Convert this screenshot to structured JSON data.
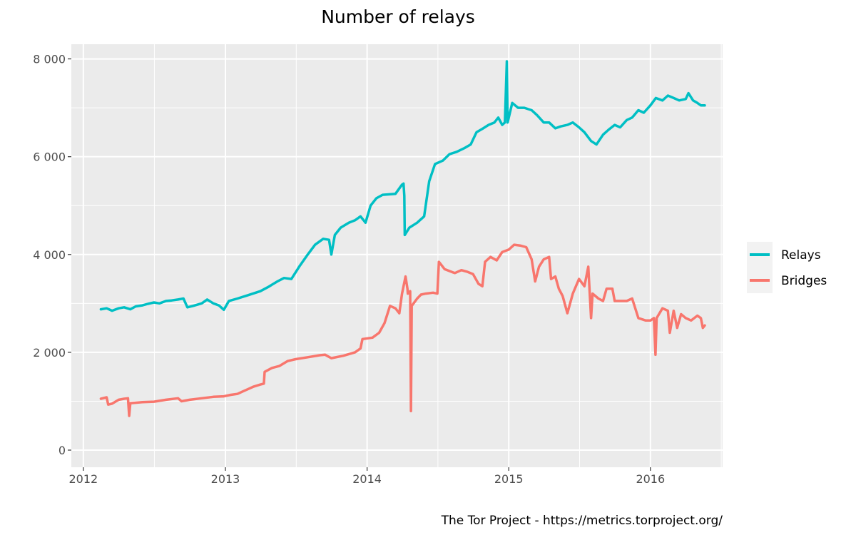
{
  "chart_data": {
    "type": "line",
    "title": "Number of relays",
    "xlabel": "",
    "ylabel": "",
    "caption": "The Tor Project - https://metrics.torproject.org/",
    "xlim": [
      "2011-12-01",
      "2016-07-05"
    ],
    "ylim": [
      -350,
      8300
    ],
    "x_ticks": [
      "2012-01-01",
      "2013-01-01",
      "2014-01-01",
      "2015-01-01",
      "2016-01-01"
    ],
    "x_tick_labels": [
      "2012",
      "2013",
      "2014",
      "2015",
      "2016"
    ],
    "y_ticks": [
      0,
      2000,
      4000,
      6000,
      8000
    ],
    "y_tick_labels": [
      "0",
      "2 000",
      "4 000",
      "6 000",
      "8 000"
    ],
    "grid": true,
    "legend_position": "right",
    "series": [
      {
        "name": "Relays",
        "color": "#00BFC4",
        "points": [
          [
            "2012-02-15",
            2880
          ],
          [
            "2012-03-01",
            2900
          ],
          [
            "2012-03-15",
            2850
          ],
          [
            "2012-04-01",
            2900
          ],
          [
            "2012-04-15",
            2920
          ],
          [
            "2012-05-01",
            2880
          ],
          [
            "2012-05-15",
            2940
          ],
          [
            "2012-06-01",
            2960
          ],
          [
            "2012-06-15",
            2990
          ],
          [
            "2012-07-01",
            3020
          ],
          [
            "2012-07-15",
            3000
          ],
          [
            "2012-08-01",
            3050
          ],
          [
            "2012-08-15",
            3060
          ],
          [
            "2012-09-01",
            3080
          ],
          [
            "2012-09-15",
            3100
          ],
          [
            "2012-09-25",
            2920
          ],
          [
            "2012-10-10",
            2950
          ],
          [
            "2012-11-01",
            3000
          ],
          [
            "2012-11-15",
            3080
          ],
          [
            "2012-12-01",
            3000
          ],
          [
            "2012-12-15",
            2960
          ],
          [
            "2012-12-28",
            2870
          ],
          [
            "2013-01-10",
            3050
          ],
          [
            "2013-02-01",
            3100
          ],
          [
            "2013-03-01",
            3170
          ],
          [
            "2013-04-01",
            3250
          ],
          [
            "2013-04-20",
            3330
          ],
          [
            "2013-05-15",
            3450
          ],
          [
            "2013-06-01",
            3520
          ],
          [
            "2013-06-20",
            3500
          ],
          [
            "2013-07-10",
            3750
          ],
          [
            "2013-08-01",
            4000
          ],
          [
            "2013-08-20",
            4200
          ],
          [
            "2013-09-10",
            4320
          ],
          [
            "2013-09-25",
            4300
          ],
          [
            "2013-10-01",
            4000
          ],
          [
            "2013-10-10",
            4400
          ],
          [
            "2013-10-25",
            4550
          ],
          [
            "2013-11-15",
            4650
          ],
          [
            "2013-12-01",
            4700
          ],
          [
            "2013-12-15",
            4780
          ],
          [
            "2013-12-28",
            4650
          ],
          [
            "2014-01-10",
            5000
          ],
          [
            "2014-01-25",
            5150
          ],
          [
            "2014-02-10",
            5220
          ],
          [
            "2014-02-25",
            5230
          ],
          [
            "2014-03-15",
            5240
          ],
          [
            "2014-04-01",
            5430
          ],
          [
            "2014-04-05",
            5450
          ],
          [
            "2014-04-07",
            5200
          ],
          [
            "2014-04-08",
            4400
          ],
          [
            "2014-04-20",
            4550
          ],
          [
            "2014-05-10",
            4650
          ],
          [
            "2014-05-28",
            4780
          ],
          [
            "2014-06-10",
            5500
          ],
          [
            "2014-06-25",
            5850
          ],
          [
            "2014-07-15",
            5920
          ],
          [
            "2014-08-01",
            6050
          ],
          [
            "2014-08-20",
            6100
          ],
          [
            "2014-09-10",
            6180
          ],
          [
            "2014-09-25",
            6250
          ],
          [
            "2014-10-10",
            6500
          ],
          [
            "2014-10-25",
            6570
          ],
          [
            "2014-11-10",
            6650
          ],
          [
            "2014-11-25",
            6700
          ],
          [
            "2014-12-05",
            6800
          ],
          [
            "2014-12-15",
            6650
          ],
          [
            "2014-12-22",
            6700
          ],
          [
            "2014-12-27",
            7950
          ],
          [
            "2014-12-29",
            6700
          ],
          [
            "2015-01-10",
            7100
          ],
          [
            "2015-01-25",
            7000
          ],
          [
            "2015-02-10",
            7000
          ],
          [
            "2015-03-01",
            6950
          ],
          [
            "2015-03-15",
            6850
          ],
          [
            "2015-04-01",
            6700
          ],
          [
            "2015-04-15",
            6700
          ],
          [
            "2015-05-01",
            6580
          ],
          [
            "2015-05-15",
            6620
          ],
          [
            "2015-06-01",
            6650
          ],
          [
            "2015-06-15",
            6700
          ],
          [
            "2015-07-01",
            6600
          ],
          [
            "2015-07-15",
            6500
          ],
          [
            "2015-08-01",
            6320
          ],
          [
            "2015-08-15",
            6250
          ],
          [
            "2015-09-01",
            6450
          ],
          [
            "2015-09-15",
            6550
          ],
          [
            "2015-10-01",
            6650
          ],
          [
            "2015-10-15",
            6600
          ],
          [
            "2015-11-01",
            6750
          ],
          [
            "2015-11-15",
            6800
          ],
          [
            "2015-12-01",
            6950
          ],
          [
            "2015-12-15",
            6900
          ],
          [
            "2016-01-01",
            7050
          ],
          [
            "2016-01-15",
            7200
          ],
          [
            "2016-02-01",
            7150
          ],
          [
            "2016-02-15",
            7250
          ],
          [
            "2016-03-01",
            7200
          ],
          [
            "2016-03-15",
            7150
          ],
          [
            "2016-04-01",
            7180
          ],
          [
            "2016-04-08",
            7300
          ],
          [
            "2016-04-20",
            7150
          ],
          [
            "2016-05-01",
            7100
          ],
          [
            "2016-05-10",
            7050
          ],
          [
            "2016-05-20",
            7050
          ]
        ]
      },
      {
        "name": "Bridges",
        "color": "#F8766D",
        "points": [
          [
            "2012-02-15",
            1050
          ],
          [
            "2012-03-01",
            1080
          ],
          [
            "2012-03-05",
            930
          ],
          [
            "2012-03-15",
            950
          ],
          [
            "2012-04-01",
            1030
          ],
          [
            "2012-04-15",
            1050
          ],
          [
            "2012-04-25",
            1060
          ],
          [
            "2012-04-28",
            700
          ],
          [
            "2012-05-01",
            960
          ],
          [
            "2012-06-01",
            980
          ],
          [
            "2012-07-01",
            990
          ],
          [
            "2012-08-01",
            1030
          ],
          [
            "2012-09-01",
            1060
          ],
          [
            "2012-09-10",
            1000
          ],
          [
            "2012-10-01",
            1030
          ],
          [
            "2012-11-01",
            1060
          ],
          [
            "2012-12-01",
            1090
          ],
          [
            "2012-12-28",
            1100
          ],
          [
            "2013-01-15",
            1130
          ],
          [
            "2013-02-01",
            1150
          ],
          [
            "2013-02-15",
            1200
          ],
          [
            "2013-03-01",
            1250
          ],
          [
            "2013-03-15",
            1300
          ],
          [
            "2013-04-01",
            1340
          ],
          [
            "2013-04-10",
            1360
          ],
          [
            "2013-04-12",
            1600
          ],
          [
            "2013-05-01",
            1680
          ],
          [
            "2013-05-20",
            1720
          ],
          [
            "2013-06-10",
            1820
          ],
          [
            "2013-07-01",
            1860
          ],
          [
            "2013-08-01",
            1900
          ],
          [
            "2013-09-01",
            1940
          ],
          [
            "2013-09-15",
            1950
          ],
          [
            "2013-10-01",
            1880
          ],
          [
            "2013-11-01",
            1930
          ],
          [
            "2013-12-01",
            2000
          ],
          [
            "2013-12-15",
            2080
          ],
          [
            "2013-12-20",
            2270
          ],
          [
            "2014-01-15",
            2300
          ],
          [
            "2014-02-01",
            2400
          ],
          [
            "2014-02-15",
            2600
          ],
          [
            "2014-03-01",
            2950
          ],
          [
            "2014-03-15",
            2900
          ],
          [
            "2014-03-25",
            2800
          ],
          [
            "2014-04-01",
            3200
          ],
          [
            "2014-04-10",
            3550
          ],
          [
            "2014-04-15",
            3300
          ],
          [
            "2014-04-16",
            3200
          ],
          [
            "2014-04-22",
            3250
          ],
          [
            "2014-04-24",
            800
          ],
          [
            "2014-04-26",
            2950
          ],
          [
            "2014-05-10",
            3100
          ],
          [
            "2014-05-20",
            3180
          ],
          [
            "2014-06-01",
            3200
          ],
          [
            "2014-06-20",
            3220
          ],
          [
            "2014-07-01",
            3200
          ],
          [
            "2014-07-05",
            3850
          ],
          [
            "2014-07-20",
            3700
          ],
          [
            "2014-08-15",
            3620
          ],
          [
            "2014-09-01",
            3680
          ],
          [
            "2014-09-15",
            3650
          ],
          [
            "2014-10-01",
            3600
          ],
          [
            "2014-10-15",
            3400
          ],
          [
            "2014-10-25",
            3350
          ],
          [
            "2014-11-01",
            3850
          ],
          [
            "2014-11-15",
            3950
          ],
          [
            "2014-12-01",
            3880
          ],
          [
            "2014-12-15",
            4050
          ],
          [
            "2015-01-01",
            4100
          ],
          [
            "2015-01-15",
            4200
          ],
          [
            "2015-02-01",
            4180
          ],
          [
            "2015-02-15",
            4150
          ],
          [
            "2015-03-01",
            3900
          ],
          [
            "2015-03-10",
            3450
          ],
          [
            "2015-03-20",
            3750
          ],
          [
            "2015-04-01",
            3900
          ],
          [
            "2015-04-15",
            3950
          ],
          [
            "2015-04-20",
            3500
          ],
          [
            "2015-05-01",
            3550
          ],
          [
            "2015-05-10",
            3300
          ],
          [
            "2015-05-20",
            3150
          ],
          [
            "2015-06-01",
            2800
          ],
          [
            "2015-06-15",
            3200
          ],
          [
            "2015-07-01",
            3500
          ],
          [
            "2015-07-15",
            3350
          ],
          [
            "2015-07-25",
            3750
          ],
          [
            "2015-08-01",
            2700
          ],
          [
            "2015-08-05",
            3200
          ],
          [
            "2015-08-20",
            3100
          ],
          [
            "2015-09-01",
            3050
          ],
          [
            "2015-09-10",
            3300
          ],
          [
            "2015-09-25",
            3300
          ],
          [
            "2015-10-01",
            3050
          ],
          [
            "2015-10-20",
            3050
          ],
          [
            "2015-11-01",
            3050
          ],
          [
            "2015-11-15",
            3100
          ],
          [
            "2015-12-01",
            2700
          ],
          [
            "2015-12-20",
            2650
          ],
          [
            "2016-01-01",
            2650
          ],
          [
            "2016-01-10",
            2700
          ],
          [
            "2016-01-14",
            1950
          ],
          [
            "2016-01-17",
            2700
          ],
          [
            "2016-02-01",
            2900
          ],
          [
            "2016-02-15",
            2850
          ],
          [
            "2016-02-20",
            2400
          ],
          [
            "2016-03-01",
            2850
          ],
          [
            "2016-03-10",
            2500
          ],
          [
            "2016-03-20",
            2780
          ],
          [
            "2016-04-01",
            2700
          ],
          [
            "2016-04-15",
            2650
          ],
          [
            "2016-05-01",
            2750
          ],
          [
            "2016-05-10",
            2700
          ],
          [
            "2016-05-15",
            2500
          ],
          [
            "2016-05-20",
            2550
          ]
        ]
      }
    ]
  }
}
